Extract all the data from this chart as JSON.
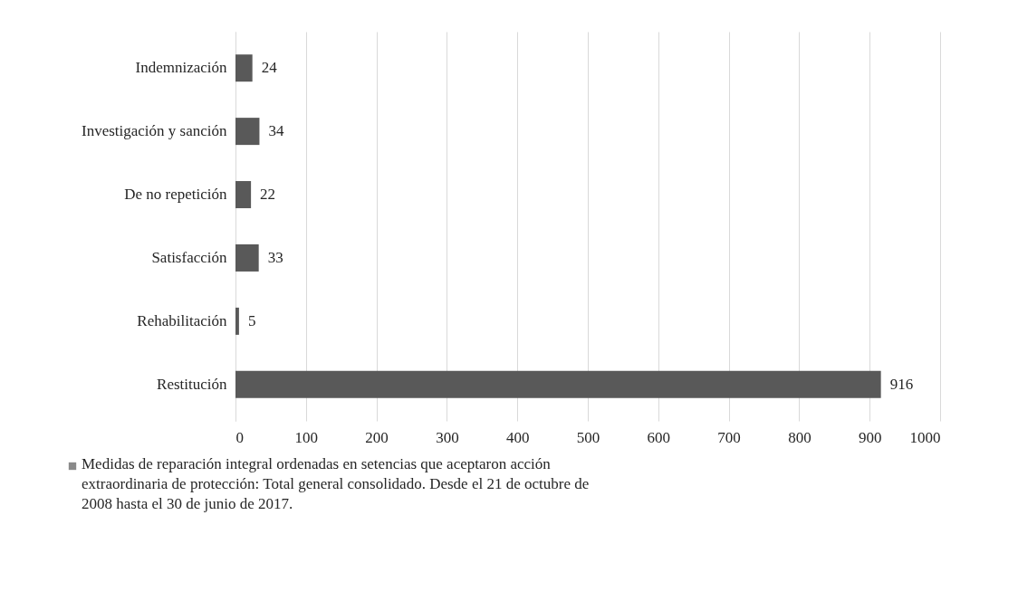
{
  "chart_data": {
    "type": "bar",
    "orientation": "horizontal",
    "categories": [
      "Indemnización",
      "Investigación y sanción",
      "De no repetición",
      "Satisfacción",
      "Rehabilitación",
      "Restitución"
    ],
    "series": [
      {
        "name": "Medidas de reparación integral ordenadas en setencias que aceptaron acción extraordinaria de protección: Total general consolidado. Desde el 21 de octubre de 2008 hasta el 30 de junio de 2017.",
        "color": "#595959",
        "values": [
          24,
          34,
          22,
          33,
          5,
          916
        ]
      }
    ],
    "xlim": [
      0,
      1000
    ],
    "xticks": [
      0,
      100,
      200,
      300,
      400,
      500,
      600,
      700,
      800,
      900,
      1000
    ],
    "grid": "x",
    "legend": "bottom",
    "data_labels": true
  }
}
